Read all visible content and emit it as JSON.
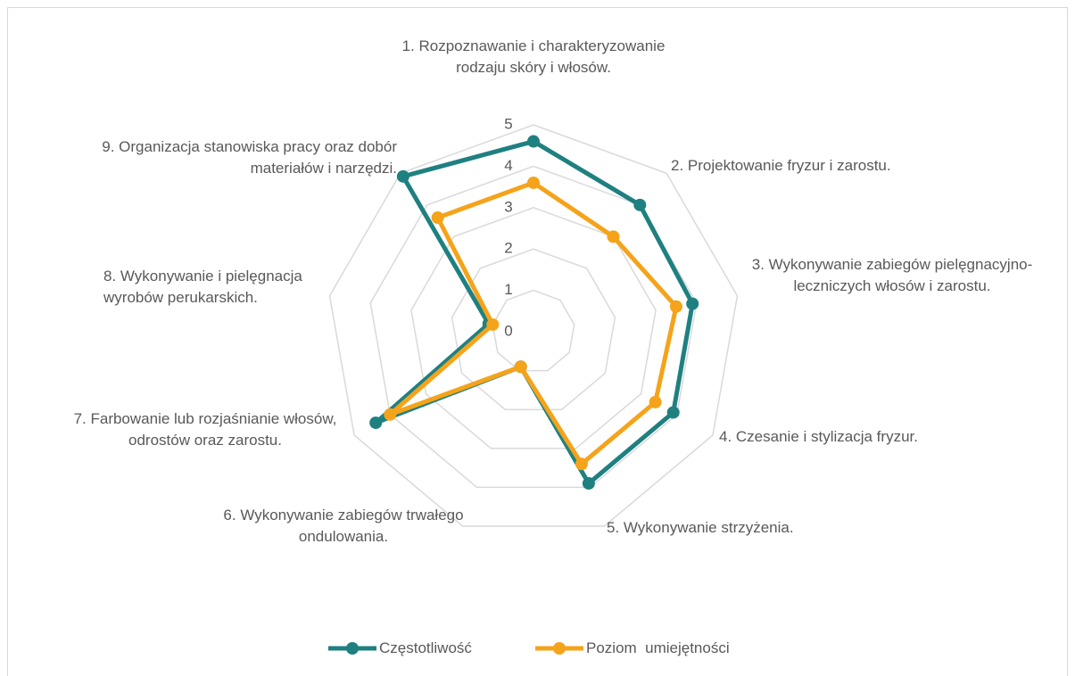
{
  "chart_data": {
    "type": "radar",
    "categories": [
      "1. Rozpoznawanie i charakteryzowanie rodzaju skóry i włosów.",
      "2. Projektowanie fryzur i zarostu.",
      "3. Wykonywanie zabiegów pielęgnacyjno-leczniczych włosów i zarostu.",
      "4. Czesanie i stylizacja fryzur.",
      "5. Wykonywanie strzyżenia.",
      "6. Wykonywanie zabiegów trwałego ondulowania.",
      "7. Farbowanie lub rozjaśnianie włosów, odrostów oraz zarostu.",
      "8. Wykonywanie i pielęgnacja wyrobów perukarskich.",
      "9. Organizacja stanowiska pracy oraz dobór materiałów i narzędzi."
    ],
    "series": [
      {
        "name": "Częstotliwość",
        "color": "#1f8080",
        "values": [
          4.6,
          4.0,
          3.9,
          3.9,
          3.9,
          0.9,
          4.4,
          1.1,
          4.9
        ]
      },
      {
        "name": "Poziom  umiejętności",
        "color": "#f5a31a",
        "values": [
          3.6,
          3.0,
          3.5,
          3.4,
          3.4,
          0.9,
          4.0,
          1.0,
          3.6
        ]
      }
    ],
    "rlim": [
      0,
      5
    ],
    "rticks": [
      0,
      1,
      2,
      3,
      4,
      5
    ],
    "grid": true,
    "legend": "bottom"
  }
}
